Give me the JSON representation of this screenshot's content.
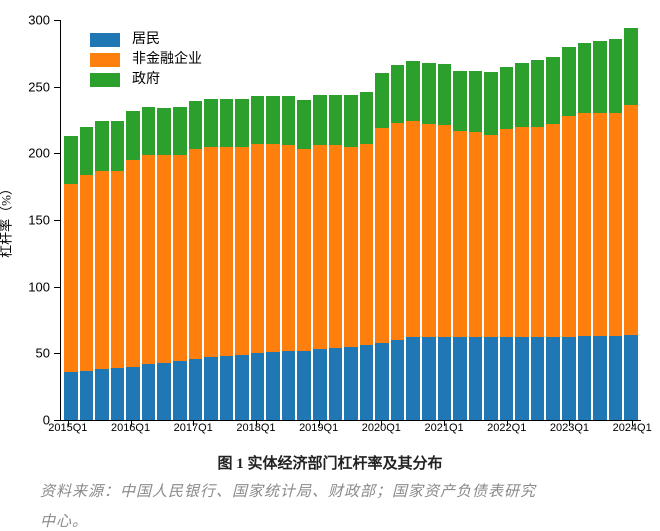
{
  "chart": {
    "type": "stacked-bar",
    "background_color": "#ffffff",
    "ylabel": "杠杆率（%）",
    "ylim": [
      0,
      300
    ],
    "ytick_step": 50,
    "yticks": [
      0,
      50,
      100,
      150,
      200,
      250,
      300
    ],
    "colors": {
      "households": "#1f77b4",
      "nonfin_corp": "#ff7f0e",
      "government": "#2ca02c",
      "axis": "#000000",
      "tick_text": "#000000"
    },
    "legend": {
      "items": [
        {
          "key": "households",
          "label": "居民"
        },
        {
          "key": "nonfin_corp",
          "label": "非金融企业"
        },
        {
          "key": "government",
          "label": "政府"
        }
      ],
      "position": "upper-left",
      "fontsize": 14
    },
    "bar_width": 0.85,
    "axis_linewidth": 1.5,
    "font": {
      "title_fontsize": 15,
      "label_fontsize": 13,
      "tick_fontsize": 12,
      "caption_color": "#8a8a8a"
    },
    "xtick_indices": [
      0,
      4,
      8,
      12,
      16,
      20,
      24,
      28,
      32,
      36
    ],
    "quarters": [
      "2015Q1",
      "2015Q2",
      "2015Q3",
      "2015Q4",
      "2016Q1",
      "2016Q2",
      "2016Q3",
      "2016Q4",
      "2017Q1",
      "2017Q2",
      "2017Q3",
      "2017Q4",
      "2018Q1",
      "2018Q2",
      "2018Q3",
      "2018Q4",
      "2019Q1",
      "2019Q2",
      "2019Q3",
      "2019Q4",
      "2020Q1",
      "2020Q2",
      "2020Q3",
      "2020Q4",
      "2021Q1",
      "2021Q2",
      "2021Q3",
      "2021Q4",
      "2022Q1",
      "2022Q2",
      "2022Q3",
      "2022Q4",
      "2023Q1",
      "2023Q2",
      "2023Q3",
      "2023Q4",
      "2024Q1"
    ],
    "series": {
      "households": [
        36,
        37,
        38,
        39,
        40,
        42,
        43,
        44,
        46,
        47,
        48,
        49,
        50,
        51,
        52,
        52,
        53,
        54,
        55,
        56,
        58,
        60,
        62,
        62,
        62,
        62,
        62,
        62,
        62,
        62,
        62,
        62,
        62,
        63,
        63,
        63,
        64
      ],
      "nonfin_corp": [
        141,
        147,
        149,
        148,
        155,
        157,
        156,
        155,
        157,
        158,
        157,
        156,
        157,
        156,
        154,
        151,
        153,
        152,
        150,
        151,
        161,
        163,
        162,
        160,
        159,
        155,
        154,
        152,
        156,
        158,
        158,
        160,
        166,
        167,
        167,
        167,
        172
      ],
      "government": [
        36,
        36,
        37,
        37,
        37,
        36,
        35,
        36,
        36,
        36,
        36,
        36,
        36,
        36,
        37,
        37,
        38,
        38,
        39,
        39,
        41,
        43,
        45,
        46,
        46,
        45,
        46,
        47,
        47,
        48,
        50,
        50,
        52,
        53,
        54,
        56,
        58
      ]
    }
  },
  "caption": {
    "title": "图 1 实体经济部门杠杆率及其分布",
    "source_line_1": "资料来源：中国人民银行、国家统计局、财政部；国家资产负债表研究",
    "source_line_2": "中心。"
  }
}
